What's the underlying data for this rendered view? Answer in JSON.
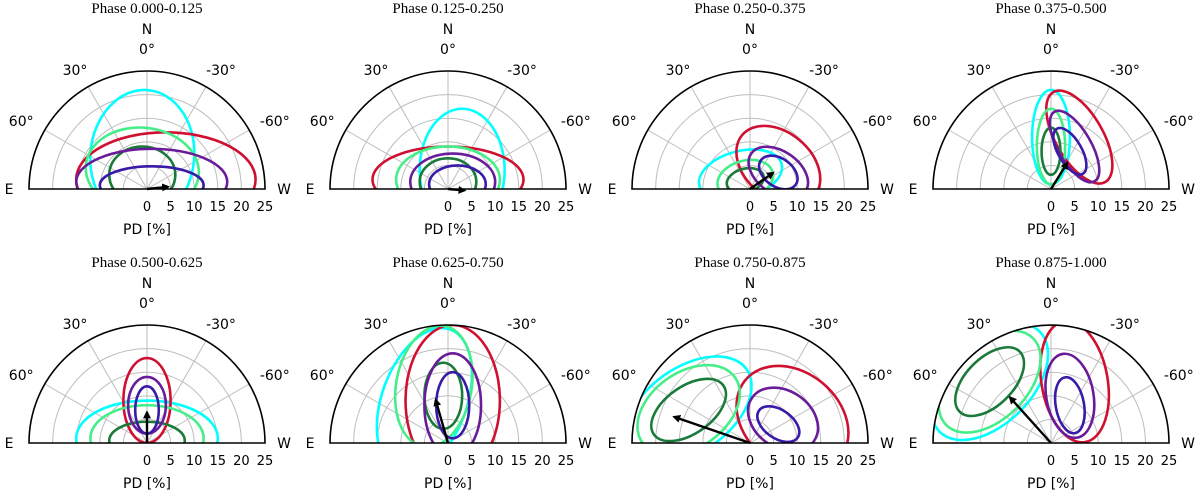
{
  "chart_data": {
    "type": "polar-contour",
    "panels": [
      {
        "title": "Phase 0.000-0.125",
        "pd": 4.5,
        "pa": -84,
        "ellipses": [
          {
            "color": "#00ffff",
            "x": -1,
            "y": 7,
            "a": 11,
            "b": 14,
            "rot": 5
          },
          {
            "color": "#d01030",
            "x": 4,
            "y": 2,
            "a": 19,
            "b": 10,
            "rot": 0
          },
          {
            "color": "#44ee88",
            "x": -1,
            "y": 4,
            "a": 12,
            "b": 9,
            "rot": 5
          },
          {
            "color": "#1a7a3a",
            "x": -1,
            "y": 3,
            "a": 7,
            "b": 6,
            "rot": 0
          },
          {
            "color": "#6a1b9a",
            "x": 1,
            "y": 1.5,
            "a": 16,
            "b": 7,
            "rot": 0
          },
          {
            "color": "#3a1aa8",
            "x": 1,
            "y": 0.8,
            "a": 11,
            "b": 4,
            "rot": 0
          }
        ]
      },
      {
        "title": "Phase 0.125-0.250",
        "pd": 3.5,
        "pa": -95,
        "ellipses": [
          {
            "color": "#00ffff",
            "x": 3,
            "y": 4,
            "a": 9,
            "b": 13,
            "rot": 0
          },
          {
            "color": "#d01030",
            "x": 0,
            "y": 2,
            "a": 16,
            "b": 7,
            "rot": 0
          },
          {
            "color": "#44ee88",
            "x": 0,
            "y": 2,
            "a": 11,
            "b": 7,
            "rot": 0
          },
          {
            "color": "#1a7a3a",
            "x": 0,
            "y": 1.5,
            "a": 6,
            "b": 5,
            "rot": 0
          },
          {
            "color": "#6a1b9a",
            "x": 1,
            "y": 1.5,
            "a": 9,
            "b": 6,
            "rot": 0
          },
          {
            "color": "#3a1aa8",
            "x": 2,
            "y": 1,
            "a": 6,
            "b": 4,
            "rot": 0
          }
        ]
      },
      {
        "title": "Phase 0.250-0.375",
        "pd": 6,
        "pa": -55,
        "ellipses": [
          {
            "color": "#00ffff",
            "x": -2,
            "y": 3,
            "a": 9,
            "b": 5,
            "rot": -15
          },
          {
            "color": "#d01030",
            "x": 6,
            "y": 5,
            "a": 10,
            "b": 7,
            "rot": 40
          },
          {
            "color": "#44ee88",
            "x": -1,
            "y": 2,
            "a": 6,
            "b": 4,
            "rot": -15
          },
          {
            "color": "#1a7a3a",
            "x": -1,
            "y": 1.8,
            "a": 4,
            "b": 2.5,
            "rot": -15
          },
          {
            "color": "#6a1b9a",
            "x": 6,
            "y": 3.5,
            "a": 7,
            "b": 4.5,
            "rot": 35
          },
          {
            "color": "#3a1aa8",
            "x": 6,
            "y": 3.5,
            "a": 4.5,
            "b": 3,
            "rot": 35
          }
        ]
      },
      {
        "title": "Phase 0.375-0.500",
        "pd": 6.5,
        "pa": -32,
        "ellipses": [
          {
            "color": "#00ffff",
            "x": 0,
            "y": 11,
            "a": 4,
            "b": 10,
            "rot": 0
          },
          {
            "color": "#d01030",
            "x": 6,
            "y": 11,
            "a": 5,
            "b": 11,
            "rot": -30
          },
          {
            "color": "#44ee88",
            "x": 0,
            "y": 9,
            "a": 3,
            "b": 8,
            "rot": 0
          },
          {
            "color": "#1a7a3a",
            "x": 0,
            "y": 8,
            "a": 2,
            "b": 5,
            "rot": 0
          },
          {
            "color": "#6a1b9a",
            "x": 5,
            "y": 9,
            "a": 3.5,
            "b": 8.5,
            "rot": -30
          },
          {
            "color": "#3a1aa8",
            "x": 4,
            "y": 8,
            "a": 2.5,
            "b": 5.5,
            "rot": -30
          }
        ]
      },
      {
        "title": "Phase 0.500-0.625",
        "pd": 6.5,
        "pa": 0,
        "ellipses": [
          {
            "color": "#00ffff",
            "x": 0,
            "y": 1,
            "a": 15,
            "b": 8,
            "rot": 0
          },
          {
            "color": "#d01030",
            "x": 0,
            "y": 9,
            "a": 5,
            "b": 9,
            "rot": 0
          },
          {
            "color": "#44ee88",
            "x": 0,
            "y": 1,
            "a": 12,
            "b": 7,
            "rot": 0
          },
          {
            "color": "#1a7a3a",
            "x": 0,
            "y": 0.5,
            "a": 8,
            "b": 4,
            "rot": 0
          },
          {
            "color": "#6a1b9a",
            "x": 0,
            "y": 8,
            "a": 4,
            "b": 6,
            "rot": 0
          },
          {
            "color": "#3a1aa8",
            "x": 0,
            "y": 7,
            "a": 2.5,
            "b": 5,
            "rot": 0
          }
        ]
      },
      {
        "title": "Phase 0.625-0.750",
        "pd": 9.5,
        "pa": 16,
        "ellipses": [
          {
            "color": "#00ffff",
            "x": -5,
            "y": 9,
            "a": 9,
            "b": 16,
            "rot": 20
          },
          {
            "color": "#d01030",
            "x": 1,
            "y": 9,
            "a": 10,
            "b": 16,
            "rot": 0
          },
          {
            "color": "#44ee88",
            "x": -3,
            "y": 12,
            "a": 8,
            "b": 13,
            "rot": 10
          },
          {
            "color": "#1a7a3a",
            "x": -1,
            "y": 10,
            "a": 4,
            "b": 7,
            "rot": 0
          },
          {
            "color": "#6a1b9a",
            "x": 1,
            "y": 8,
            "a": 6,
            "b": 11,
            "rot": 0
          },
          {
            "color": "#3a1aa8",
            "x": 1,
            "y": 8,
            "a": 3.5,
            "b": 7,
            "rot": 0
          }
        ]
      },
      {
        "title": "Phase 0.750-0.875",
        "pd": 17,
        "pa": 71,
        "ellipses": [
          {
            "color": "#00ffff",
            "x": -13,
            "y": 7,
            "a": 15,
            "b": 9,
            "rot": -35
          },
          {
            "color": "#d01030",
            "x": 9,
            "y": 5,
            "a": 13,
            "b": 10,
            "rot": 40
          },
          {
            "color": "#44ee88",
            "x": -13,
            "y": 7,
            "a": 12,
            "b": 8,
            "rot": -35
          },
          {
            "color": "#1a7a3a",
            "x": -13,
            "y": 7,
            "a": 9,
            "b": 5,
            "rot": -35
          },
          {
            "color": "#6a1b9a",
            "x": 7,
            "y": 5,
            "a": 8,
            "b": 6,
            "rot": 35
          },
          {
            "color": "#3a1aa8",
            "x": 6,
            "y": 4,
            "a": 5,
            "b": 3,
            "rot": 35
          }
        ]
      },
      {
        "title": "Phase 0.875-1.000",
        "pd": 13,
        "pa": 42,
        "ellipses": [
          {
            "color": "#00ffff",
            "x": -13,
            "y": 13,
            "a": 15,
            "b": 9,
            "rot": -45
          },
          {
            "color": "#d01030",
            "x": 5,
            "y": 13,
            "a": 7,
            "b": 13,
            "rot": -10
          },
          {
            "color": "#44ee88",
            "x": -13,
            "y": 13,
            "a": 13,
            "b": 8,
            "rot": -45
          },
          {
            "color": "#1a7a3a",
            "x": -13,
            "y": 13,
            "a": 9,
            "b": 5,
            "rot": -45
          },
          {
            "color": "#6a1b9a",
            "x": 4,
            "y": 10,
            "a": 5,
            "b": 9,
            "rot": -10
          },
          {
            "color": "#3a1aa8",
            "x": 4,
            "y": 8,
            "a": 3,
            "b": 6,
            "rot": -10
          }
        ]
      }
    ],
    "north_label": "N",
    "east_label": "E",
    "west_label": "W",
    "angle_ticks": [
      "0°",
      "30°",
      "-30°",
      "60°",
      "-60°"
    ],
    "radial_ticks": [
      "0",
      "5",
      "10",
      "15",
      "20",
      "25"
    ],
    "rmax": 25,
    "xlabel": "PD [%]"
  }
}
